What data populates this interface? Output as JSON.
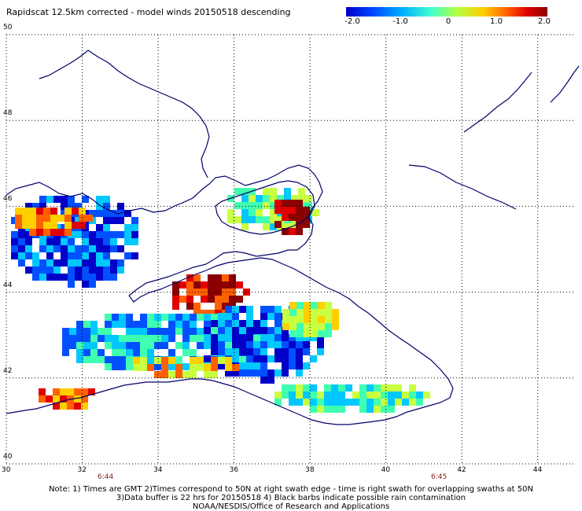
{
  "title": "Rapidscat 12.5km corrected - model winds 20150518 descending",
  "colorbar": {
    "labels": [
      "-2.0",
      "-1.0",
      "0",
      "1.0",
      "2.0"
    ],
    "values": [
      -2.0,
      -1.0,
      0,
      1.0,
      2.0
    ],
    "colors": [
      "#0000c8",
      "#0050ff",
      "#00c8ff",
      "#40ffb0",
      "#c8ff40",
      "#ffd000",
      "#ff6000",
      "#e00000",
      "#8b0000"
    ]
  },
  "axes": {
    "lon_labels": [
      "30",
      "32",
      "34",
      "36",
      "38",
      "40",
      "42",
      "44"
    ],
    "lat_labels": [
      "50",
      "48",
      "46",
      "44",
      "42",
      "40"
    ],
    "lon_range": [
      30,
      45
    ],
    "lat_range": [
      40,
      50
    ],
    "grid": true
  },
  "times": {
    "left": "6:44",
    "right": "6:45"
  },
  "notes": [
    "Note: 1) Times are GMT 2)Times correspond to 50N at right swath edge - time is right swath for overlapping swaths at 50N",
    "3)Data buffer is 22 hrs for 20150518 4) Black barbs indicate possible rain contamination",
    "NOAA/NESDIS/Office of Research and Applications"
  ]
}
